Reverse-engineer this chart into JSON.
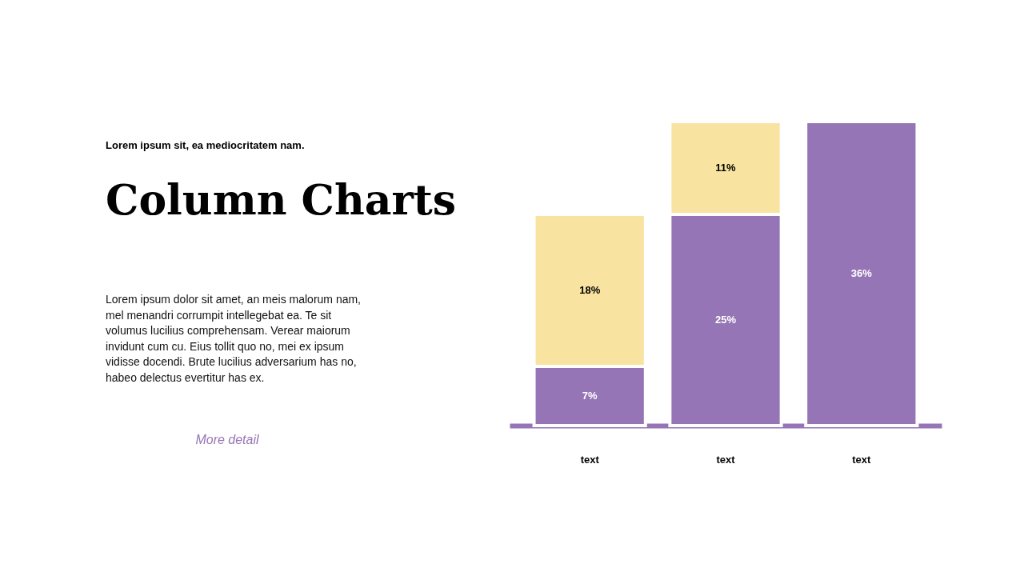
{
  "chart_data": {
    "type": "bar",
    "stacked": true,
    "tick_labels": "x",
    "title": "Column Charts",
    "subtitle": "Lorem ipsum sit, ea mediocritatem nam.",
    "annotations": [
      "Lorem ipsum dolor sit amet, an meis malorum nam,",
      "mel menandri corrumpit intellegebat ea. Te sit",
      "volumus lucilius comprehensam. Verear maiorum",
      "invidunt cum cu. Eius tollit quo no, mei ex ipsum",
      "vidisse docendi. Brute lucilius adversarium has no,",
      "habeo delectus evertitur has ex.",
      "More detail"
    ],
    "categories": [
      "text",
      "text",
      "text"
    ],
    "series": [
      {
        "color": "#9575b5",
        "values": [
          7,
          25,
          36
        ],
        "value_labels": [
          "7%",
          "25%",
          "36%"
        ]
      },
      {
        "color": "#f8e3a0",
        "values": [
          18,
          11,
          null
        ],
        "value_labels": [
          "18%",
          "11%",
          null
        ]
      }
    ]
  }
}
